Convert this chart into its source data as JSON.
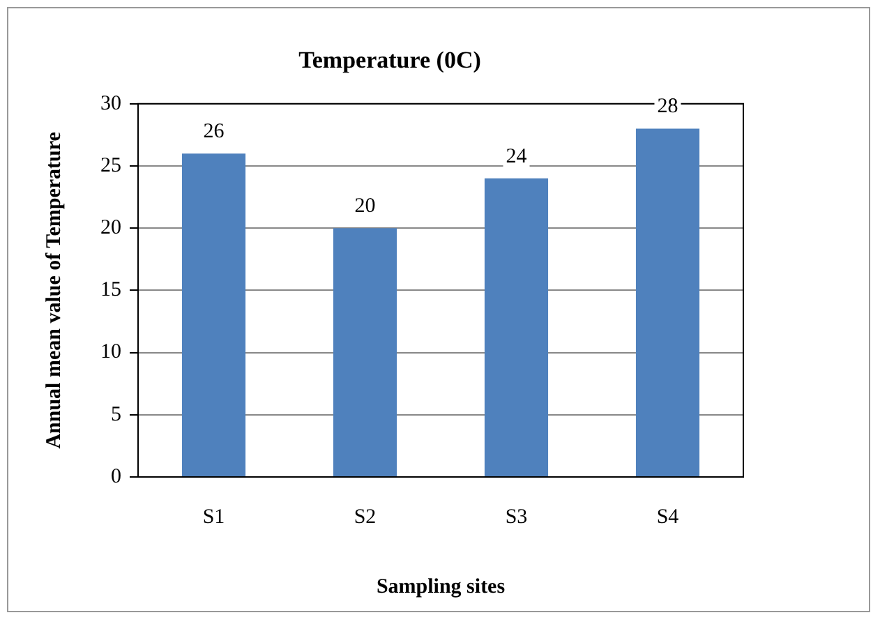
{
  "chart_data": {
    "type": "bar",
    "title": "Temperature (0C)",
    "xlabel": "Sampling sites",
    "ylabel": "Annual mean value of Temperature",
    "categories": [
      "S1",
      "S2",
      "S3",
      "S4"
    ],
    "values": [
      26,
      20,
      24,
      28
    ],
    "color": "#4f81bd",
    "ylim": [
      0,
      30
    ],
    "yticks": [
      0,
      5,
      10,
      15,
      20,
      25,
      30
    ],
    "grid": "y",
    "legend": false,
    "data_labels": true
  }
}
